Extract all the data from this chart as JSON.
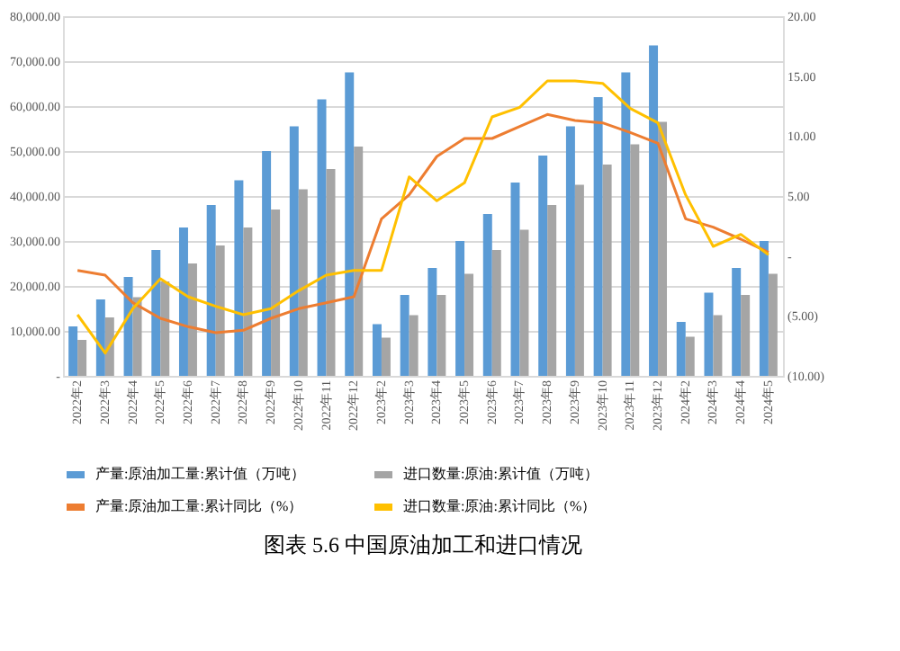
{
  "chart_data": {
    "type": "bar",
    "title": "图表 5.6    中国原油加工和进口情况",
    "categories": [
      "2022年2",
      "2022年3",
      "2022年4",
      "2022年5",
      "2022年6",
      "2022年7",
      "2022年8",
      "2022年9",
      "2022年10",
      "2022年11",
      "2022年12",
      "2023年2",
      "2023年3",
      "2023年4",
      "2023年5",
      "2023年6",
      "2023年7",
      "2023年8",
      "2023年9",
      "2023年10",
      "2023年11",
      "2023年12",
      "2024年2",
      "2024年3",
      "2024年4",
      "2024年5"
    ],
    "series": [
      {
        "name": "产量:原油加工量:累计值（万吨）",
        "color": "#5b9bd5",
        "values": [
          11000,
          17000,
          22000,
          28000,
          33000,
          38000,
          43500,
          50000,
          55500,
          61500,
          67500,
          11500,
          18000,
          24000,
          30000,
          36000,
          43000,
          49000,
          55500,
          62000,
          67500,
          73500,
          12000,
          18500,
          24000,
          30000
        ]
      },
      {
        "name": "进口数量:原油:累计值（万吨）",
        "color": "#a5a5a5",
        "values": [
          8000,
          13000,
          17500,
          21000,
          25000,
          29000,
          33000,
          37000,
          41500,
          46000,
          51000,
          8500,
          13500,
          18000,
          22700,
          28000,
          32500,
          38000,
          42500,
          47000,
          51500,
          56500,
          8700,
          13500,
          18000,
          22700
        ]
      },
      {
        "name": "产量:原油加工量:累计同比（%）",
        "color": "#ed7d31",
        "type": "line",
        "axis": "y2",
        "values": [
          -1.2,
          -1.6,
          -3.9,
          -5.2,
          -5.9,
          -6.4,
          -6.2,
          -5.2,
          -4.4,
          -3.9,
          -3.4,
          3.1,
          5.1,
          8.3,
          9.8,
          9.8,
          10.8,
          11.8,
          11.3,
          11.1,
          10.3,
          9.4,
          3.1,
          2.4,
          1.4,
          0.3
        ]
      },
      {
        "name": "进口数量:原油:累计同比（%）",
        "color": "#ffc000",
        "type": "line",
        "axis": "y2",
        "values": [
          -4.9,
          -8.1,
          -4.4,
          -1.9,
          -3.4,
          -4.2,
          -4.9,
          -4.4,
          -2.9,
          -1.6,
          -1.2,
          -1.2,
          6.6,
          4.6,
          6.1,
          11.6,
          12.4,
          14.6,
          14.6,
          14.4,
          12.3,
          11.1,
          5.1,
          0.8,
          1.8,
          0.1
        ]
      }
    ],
    "ylim": [
      0,
      80000
    ],
    "yticks": [
      {
        "value": 0,
        "label": "-"
      },
      {
        "value": 10000,
        "label": "10,000.00"
      },
      {
        "value": 20000,
        "label": "20,000.00"
      },
      {
        "value": 30000,
        "label": "30,000.00"
      },
      {
        "value": 40000,
        "label": "40,000.00"
      },
      {
        "value": 50000,
        "label": "50,000.00"
      },
      {
        "value": 60000,
        "label": "60,000.00"
      },
      {
        "value": 70000,
        "label": "70,000.00"
      },
      {
        "value": 80000,
        "label": "80,000.00"
      }
    ],
    "y2lim": [
      -10,
      20
    ],
    "y2ticks": [
      {
        "value": -10,
        "label": "(10.00)"
      },
      {
        "value": -5,
        "label": "(5.00)"
      },
      {
        "value": 0,
        "label": "-"
      },
      {
        "value": 5,
        "label": "5.00"
      },
      {
        "value": 10,
        "label": "10.00"
      },
      {
        "value": 15,
        "label": "15.00"
      },
      {
        "value": 20,
        "label": "20.00"
      }
    ],
    "grid": "y",
    "legend": "bottom"
  }
}
